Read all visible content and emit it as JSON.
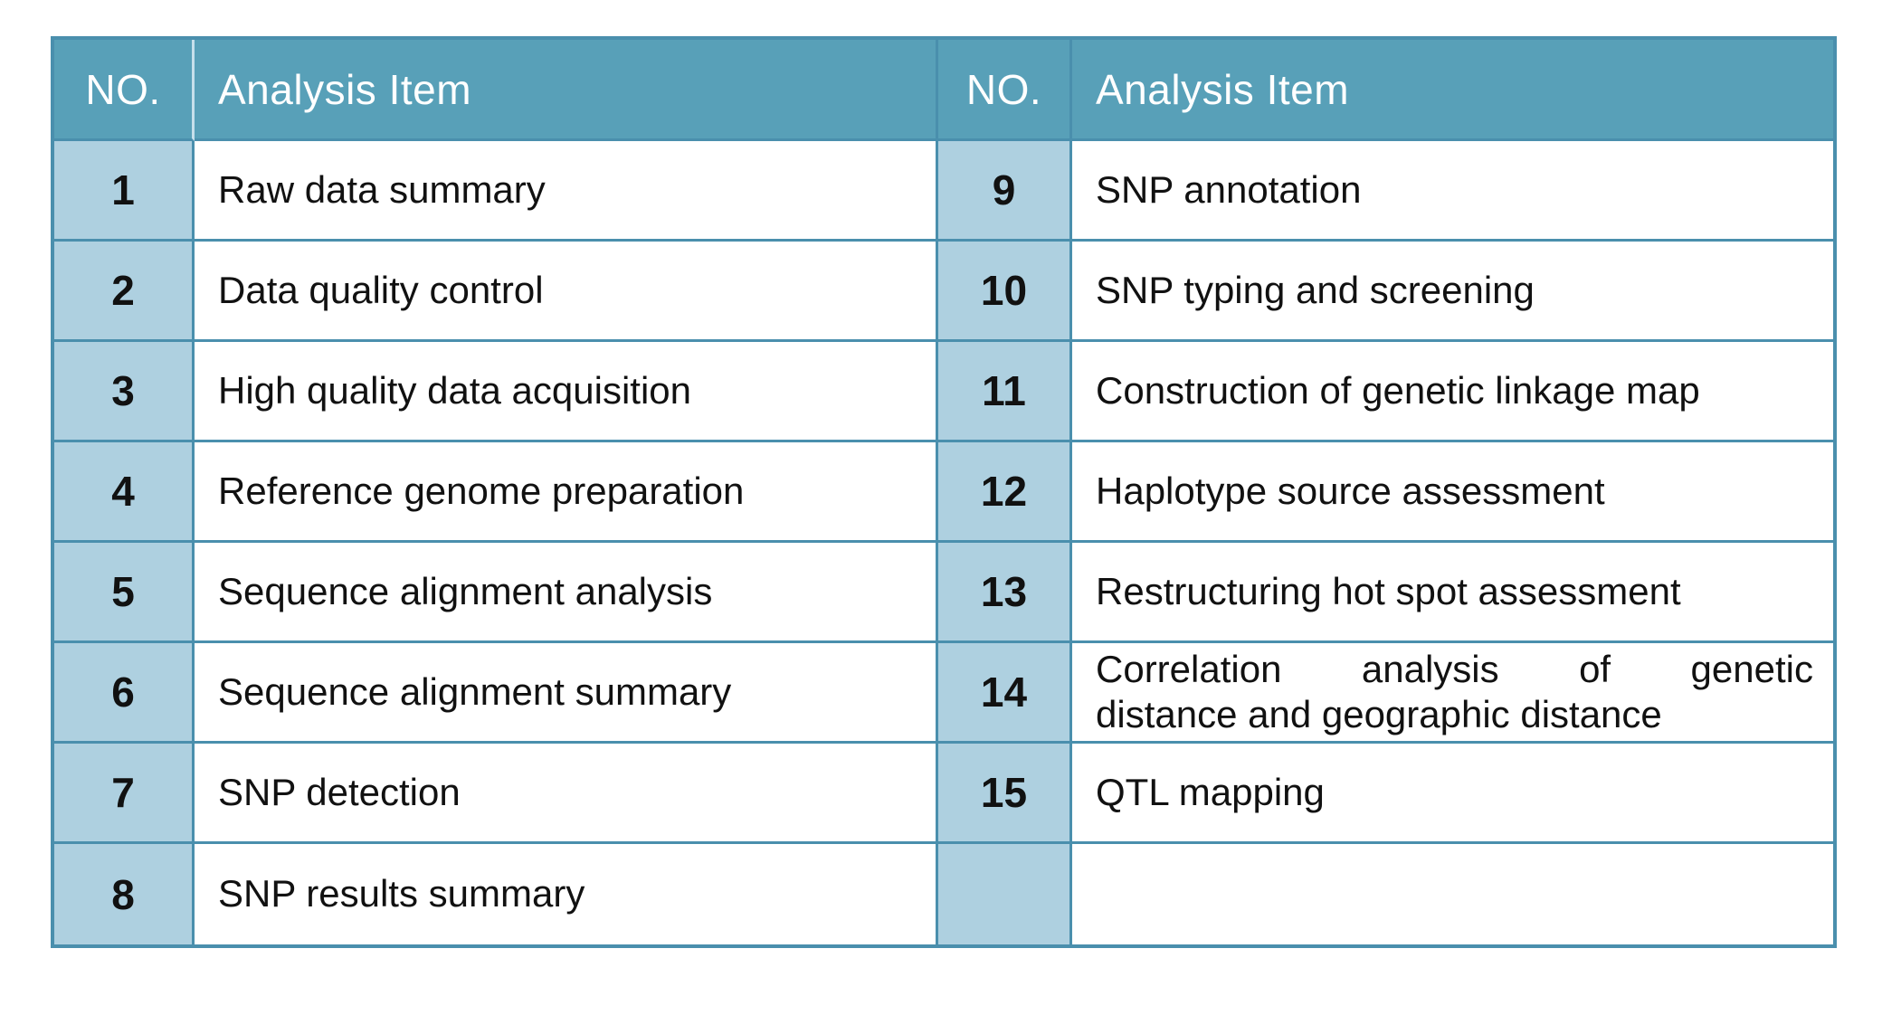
{
  "table": {
    "colors": {
      "header_bg": "#58a0b8",
      "header_text": "#ffffff",
      "no_cell_bg": "#aed0e0",
      "item_cell_bg": "#ffffff",
      "border": "#4a8fad",
      "header_light_divider": "#c6dfeb",
      "body_text": "#111111"
    },
    "header": {
      "no_left": "NO.",
      "item_left": "Analysis Item",
      "no_right": "NO.",
      "item_right": "Analysis Item"
    },
    "rows": [
      {
        "no_left": "1",
        "item_left": "Raw data summary",
        "no_right": "9",
        "item_right": "SNP annotation"
      },
      {
        "no_left": "2",
        "item_left": "Data quality control",
        "no_right": "10",
        "item_right": "SNP typing and screening"
      },
      {
        "no_left": "3",
        "item_left": "High quality data acquisition",
        "no_right": "11",
        "item_right": "Construction of genetic linkage map"
      },
      {
        "no_left": "4",
        "item_left": "Reference genome preparation",
        "no_right": "12",
        "item_right": "Haplotype source assessment"
      },
      {
        "no_left": "5",
        "item_left": "Sequence alignment analysis",
        "no_right": "13",
        "item_right": "Restructuring hot spot assessment"
      },
      {
        "no_left": "6",
        "item_left": "Sequence alignment summary",
        "no_right": "14",
        "item_right_line1": "Correlation analysis of genetic",
        "item_right_line2": "distance and geographic distance"
      },
      {
        "no_left": "7",
        "item_left": "SNP detection",
        "no_right": "15",
        "item_right": "QTL mapping"
      },
      {
        "no_left": "8",
        "item_left": "SNP results summary",
        "no_right": "",
        "item_right": ""
      }
    ]
  }
}
